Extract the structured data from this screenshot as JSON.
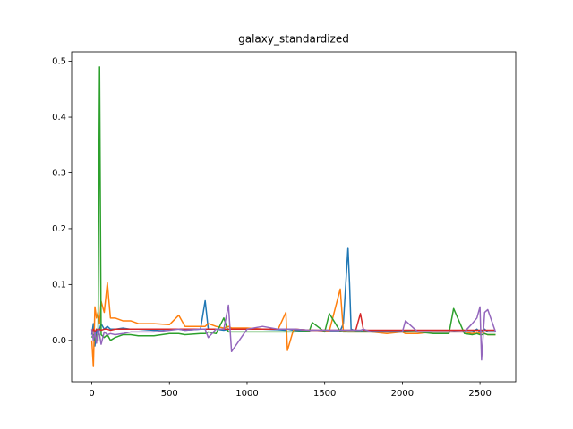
{
  "chart_data": {
    "type": "line",
    "title": "galaxy_standardized",
    "x": [
      0,
      10,
      20,
      30,
      40,
      50,
      60,
      80,
      100,
      120,
      150,
      200,
      250,
      300,
      400,
      500,
      560,
      600,
      700,
      730,
      750,
      800,
      850,
      880,
      900,
      1000,
      1100,
      1200,
      1250,
      1260,
      1300,
      1400,
      1420,
      1500,
      1530,
      1600,
      1620,
      1650,
      1660,
      1670,
      1700,
      1730,
      1750,
      1800,
      1900,
      2000,
      2020,
      2100,
      2200,
      2300,
      2330,
      2400,
      2450,
      2480,
      2500,
      2510,
      2530,
      2550,
      2600
    ],
    "series": [
      {
        "color": "#1f77b4",
        "values": [
          0.01,
          0.03,
          -0.01,
          0.02,
          0.01,
          0.02,
          0.03,
          0.02,
          0.025,
          0.02,
          0.02,
          0.022,
          0.02,
          0.02,
          0.018,
          0.02,
          0.02,
          0.018,
          0.02,
          0.071,
          0.02,
          0.02,
          0.018,
          0.02,
          0.02,
          0.02,
          0.02,
          0.019,
          0.018,
          0.02,
          0.018,
          0.017,
          0.018,
          0.017,
          0.017,
          0.017,
          0.03,
          0.166,
          0.102,
          0.02,
          0.017,
          0.016,
          0.017,
          0.016,
          0.016,
          0.016,
          0.016,
          0.015,
          0.015,
          0.015,
          0.016,
          0.015,
          0.015,
          0.02,
          0.015,
          0.015,
          0.02,
          0.015,
          0.015
        ]
      },
      {
        "color": "#ff7f0e",
        "values": [
          0.0,
          -0.047,
          0.06,
          0.04,
          0.05,
          0.03,
          0.07,
          0.05,
          0.103,
          0.04,
          0.04,
          0.035,
          0.035,
          0.03,
          0.03,
          0.028,
          0.045,
          0.025,
          0.025,
          0.025,
          0.03,
          0.025,
          0.022,
          0.025,
          0.022,
          0.022,
          0.02,
          0.02,
          0.05,
          -0.018,
          0.02,
          0.018,
          0.018,
          0.017,
          0.017,
          0.092,
          0.017,
          0.015,
          0.015,
          0.015,
          0.015,
          0.015,
          0.015,
          0.015,
          0.012,
          0.015,
          0.012,
          0.012,
          0.015,
          0.015,
          0.015,
          0.015,
          0.012,
          0.015,
          0.012,
          0.015,
          0.012,
          0.01,
          0.01
        ]
      },
      {
        "color": "#2ca02c",
        "values": [
          0.005,
          0.01,
          0.0,
          0.01,
          0.0,
          0.49,
          0.01,
          0.005,
          0.01,
          0.0,
          0.005,
          0.01,
          0.01,
          0.008,
          0.008,
          0.012,
          0.012,
          0.01,
          0.012,
          0.012,
          0.015,
          0.012,
          0.04,
          0.015,
          0.015,
          0.015,
          0.015,
          0.015,
          0.015,
          0.015,
          0.015,
          0.016,
          0.032,
          0.015,
          0.048,
          0.016,
          0.015,
          0.015,
          0.015,
          0.015,
          0.015,
          0.015,
          0.015,
          0.015,
          0.015,
          0.015,
          0.015,
          0.015,
          0.012,
          0.012,
          0.057,
          0.012,
          0.01,
          0.012,
          0.01,
          0.01,
          0.012,
          0.01,
          0.01
        ]
      },
      {
        "color": "#d62728",
        "values": [
          0.015,
          0.02,
          0.015,
          0.02,
          0.018,
          0.02,
          0.018,
          0.02,
          0.02,
          0.018,
          0.02,
          0.02,
          0.02,
          0.02,
          0.02,
          0.02,
          0.02,
          0.02,
          0.02,
          0.02,
          0.02,
          0.02,
          0.02,
          0.02,
          0.02,
          0.02,
          0.02,
          0.02,
          0.02,
          0.02,
          0.02,
          0.018,
          0.018,
          0.018,
          0.018,
          0.018,
          0.018,
          0.018,
          0.018,
          0.018,
          0.018,
          0.048,
          0.018,
          0.018,
          0.018,
          0.018,
          0.018,
          0.018,
          0.018,
          0.018,
          0.018,
          0.018,
          0.018,
          0.018,
          0.018,
          0.018,
          0.018,
          0.018,
          0.018
        ]
      },
      {
        "color": "#9467bd",
        "values": [
          0.02,
          0.0,
          0.015,
          -0.005,
          0.02,
          0.01,
          -0.007,
          0.015,
          0.01,
          0.012,
          0.01,
          0.012,
          0.015,
          0.015,
          0.015,
          0.018,
          0.02,
          0.018,
          0.02,
          0.02,
          0.005,
          0.02,
          0.02,
          0.063,
          -0.02,
          0.02,
          0.025,
          0.02,
          0.02,
          0.02,
          0.02,
          0.018,
          0.018,
          0.018,
          0.018,
          0.018,
          0.018,
          0.018,
          0.018,
          0.018,
          0.018,
          0.018,
          0.02,
          0.015,
          0.015,
          0.015,
          0.035,
          0.015,
          0.015,
          0.015,
          0.015,
          0.015,
          0.03,
          0.04,
          0.06,
          -0.035,
          0.05,
          0.055,
          0.015
        ]
      }
    ],
    "xlim": [
      -130,
      2730
    ],
    "xticks": [
      0,
      500,
      1000,
      1500,
      2000,
      2500
    ],
    "ylim": [
      -0.074,
      0.517
    ],
    "yticks": [
      {
        "value": 0,
        "label": "0.0"
      },
      {
        "value": 0.1,
        "label": "0.1"
      },
      {
        "value": 0.2,
        "label": "0.2"
      },
      {
        "value": 0.3,
        "label": "0.3"
      },
      {
        "value": 0.4,
        "label": "0.4"
      },
      {
        "value": 0.5,
        "label": "0.5"
      }
    ],
    "grid": false
  }
}
